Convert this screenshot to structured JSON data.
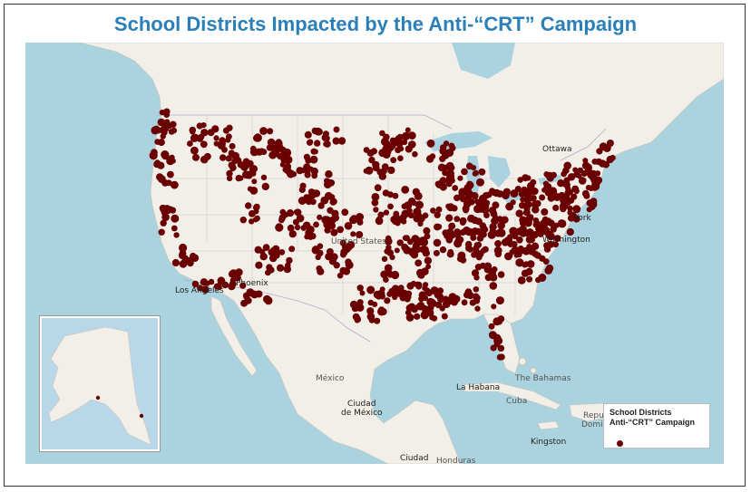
{
  "title": "School Districts Impacted by the Anti-“CRT” Campaign",
  "legend": {
    "title": "School Districts Anti-“CRT” Campaign",
    "marker_color": "#6b0000"
  },
  "colors": {
    "water": "#aad3df",
    "land": "#f2efe9",
    "marker": "#6b0000",
    "title": "#2a7fb8"
  },
  "map_labels": {
    "country_us": "United States",
    "mexico": "México",
    "ottawa": "Ottawa",
    "new_york": "York",
    "washington": "Washington",
    "phoenix": "Phoenix",
    "los_angeles": "Los Angeles",
    "la_habana": "La Habana",
    "cuba": "Cuba",
    "bahamas": "The Bahamas",
    "kingston": "Kingston",
    "ciudad_mexico_1": "Ciudad",
    "ciudad_mexico_2": "de México",
    "ciudad_bottom": "Ciudad",
    "honduras": "Honduras",
    "repub": "Repu",
    "domin": "Domin"
  }
}
